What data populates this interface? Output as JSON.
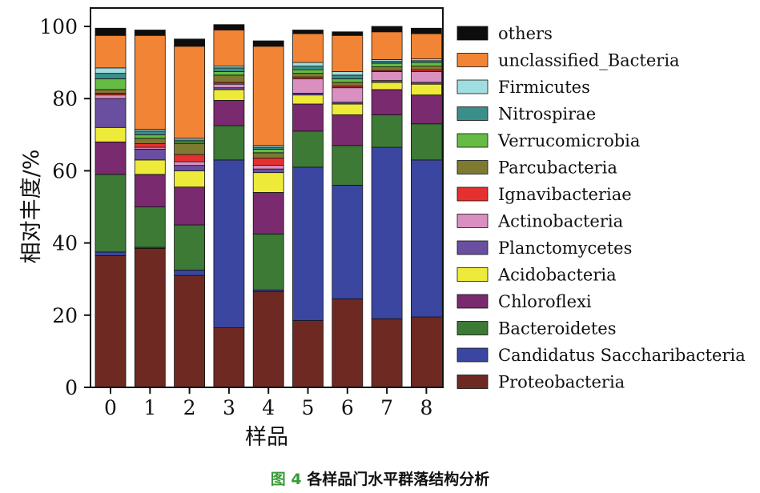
{
  "chart_data": {
    "type": "bar",
    "stacked": true,
    "categories": [
      "0",
      "1",
      "2",
      "3",
      "4",
      "5",
      "6",
      "7",
      "8"
    ],
    "xlabel": "样品",
    "ylabel": "相对丰度/%",
    "ylim": [
      0,
      100
    ],
    "yticks": [
      0,
      20,
      40,
      60,
      80,
      100
    ],
    "grid": false,
    "legend_position": "right",
    "series": [
      {
        "name": "Proteobacteria",
        "color": "#6e2a22",
        "values": [
          36.5,
          38.5,
          31,
          16.5,
          26.5,
          18.5,
          24.5,
          19,
          19.5
        ]
      },
      {
        "name": "Candidatus Saccharibacteria",
        "color": "#3a46a0",
        "values": [
          1,
          0.3,
          1.5,
          46.5,
          0.5,
          42.5,
          31.5,
          47.5,
          43.5
        ]
      },
      {
        "name": "Bacteroidetes",
        "color": "#3c7a36",
        "values": [
          21.5,
          11.2,
          12.5,
          9.5,
          15.5,
          10,
          11,
          9,
          10
        ]
      },
      {
        "name": "Chloroflexi",
        "color": "#7a2a6e",
        "values": [
          9,
          9,
          10.5,
          7,
          11.5,
          7.5,
          8.5,
          7,
          8
        ]
      },
      {
        "name": "Acidobacteria",
        "color": "#eeea3a",
        "values": [
          4,
          4,
          4.5,
          3,
          5.5,
          2.5,
          3,
          2,
          3
        ]
      },
      {
        "name": "Planctomycetes",
        "color": "#6a4fa0",
        "values": [
          8,
          3,
          1.5,
          0.5,
          1,
          0.5,
          0.5,
          0.5,
          0.5
        ]
      },
      {
        "name": "Actinobacteria",
        "color": "#d98fc0",
        "values": [
          1,
          0.5,
          1,
          1,
          1,
          4,
          4,
          2.5,
          3
        ]
      },
      {
        "name": "Ignavibacteriae",
        "color": "#e53030",
        "values": [
          0.5,
          1,
          2,
          0.5,
          2,
          0.5,
          0.5,
          0.3,
          0.5
        ]
      },
      {
        "name": "Parcubacteria",
        "color": "#7f7a32",
        "values": [
          1,
          1.5,
          3,
          2,
          1.5,
          1,
          1,
          1,
          1
        ]
      },
      {
        "name": "Verrucomicrobia",
        "color": "#66bb44",
        "values": [
          3,
          1,
          0.5,
          1,
          1,
          1,
          1,
          1,
          1
        ]
      },
      {
        "name": "Nitrospirae",
        "color": "#3a8f8a",
        "values": [
          1.5,
          1,
          0.5,
          1,
          0.5,
          1,
          1,
          0.5,
          0.5
        ]
      },
      {
        "name": "Firmicutes",
        "color": "#9fdde0",
        "values": [
          1.5,
          0.5,
          0.5,
          0.5,
          0.5,
          1,
          1,
          0.5,
          0.5
        ]
      },
      {
        "name": "unclassified_Bacteria",
        "color": "#f28535",
        "values": [
          9,
          26,
          25.5,
          10,
          27.5,
          8,
          10,
          7.7,
          7
        ]
      },
      {
        "name": "others",
        "color": "#0d0d0d",
        "values": [
          2,
          1.5,
          2,
          1.5,
          1.5,
          1,
          1,
          1.5,
          1.5
        ]
      }
    ]
  },
  "caption": {
    "figure_number": "图 4",
    "figure_text": "各样品门水平群落结构分析"
  }
}
